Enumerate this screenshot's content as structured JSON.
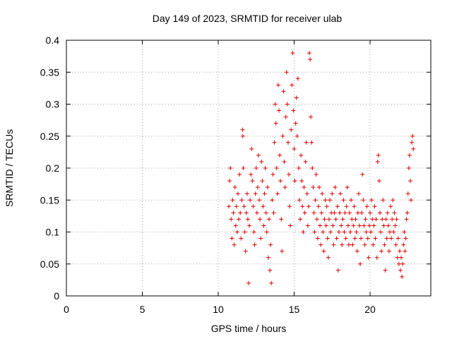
{
  "chart_data": {
    "type": "scatter",
    "title": "Day 149 of 2023, SRMTID for receiver ulab",
    "xlabel": "GPS time / hours",
    "ylabel": "SRMTID / TECUs",
    "xlim": [
      0,
      24
    ],
    "ylim": [
      0,
      0.4
    ],
    "xticks": [
      0,
      5,
      10,
      15,
      20
    ],
    "xtick_labels": [
      "0",
      "5",
      "10",
      "15",
      "20"
    ],
    "yticks": [
      0,
      0.05,
      0.1,
      0.15,
      0.2,
      0.25,
      0.3,
      0.35,
      0.4
    ],
    "ytick_labels": [
      "0",
      "0.05",
      "0.1",
      "0.15",
      "0.2",
      "0.25",
      "0.3",
      "0.35",
      "0.4"
    ],
    "grid": true,
    "marker": "+",
    "color": "#e00000",
    "series": [
      {
        "name": "SRMTID",
        "points": [
          [
            10.7,
            0.14
          ],
          [
            10.75,
            0.18
          ],
          [
            10.8,
            0.2
          ],
          [
            10.85,
            0.12
          ],
          [
            10.9,
            0.09
          ],
          [
            10.95,
            0.15
          ],
          [
            11.0,
            0.13
          ],
          [
            11.05,
            0.08
          ],
          [
            11.1,
            0.17
          ],
          [
            11.15,
            0.11
          ],
          [
            11.2,
            0.14
          ],
          [
            11.25,
            0.1
          ],
          [
            11.3,
            0.16
          ],
          [
            11.35,
            0.12
          ],
          [
            11.4,
            0.19
          ],
          [
            11.45,
            0.13
          ],
          [
            11.5,
            0.09
          ],
          [
            11.55,
            0.15
          ],
          [
            11.6,
            0.26
          ],
          [
            11.62,
            0.25
          ],
          [
            11.65,
            0.2
          ],
          [
            11.7,
            0.14
          ],
          [
            11.75,
            0.1
          ],
          [
            11.8,
            0.07
          ],
          [
            11.85,
            0.13
          ],
          [
            11.9,
            0.16
          ],
          [
            11.95,
            0.12
          ],
          [
            12.0,
            0.02
          ],
          [
            12.05,
            0.11
          ],
          [
            12.1,
            0.15
          ],
          [
            12.15,
            0.19
          ],
          [
            12.2,
            0.23
          ],
          [
            12.25,
            0.18
          ],
          [
            12.3,
            0.14
          ],
          [
            12.35,
            0.1
          ],
          [
            12.4,
            0.08
          ],
          [
            12.45,
            0.16
          ],
          [
            12.5,
            0.2
          ],
          [
            12.55,
            0.13
          ],
          [
            12.6,
            0.17
          ],
          [
            12.65,
            0.22
          ],
          [
            12.7,
            0.15
          ],
          [
            12.75,
            0.12
          ],
          [
            12.8,
            0.09
          ],
          [
            12.85,
            0.21
          ],
          [
            12.9,
            0.18
          ],
          [
            12.95,
            0.14
          ],
          [
            13.0,
            0.11
          ],
          [
            13.05,
            0.16
          ],
          [
            13.1,
            0.2
          ],
          [
            13.15,
            0.13
          ],
          [
            13.2,
            0.1
          ],
          [
            13.25,
            0.17
          ],
          [
            13.3,
            0.06
          ],
          [
            13.35,
            0.12
          ],
          [
            13.4,
            0.04
          ],
          [
            13.45,
            0.08
          ],
          [
            13.5,
            0.02
          ],
          [
            13.55,
            0.15
          ],
          [
            13.6,
            0.19
          ],
          [
            13.65,
            0.13
          ],
          [
            13.7,
            0.24
          ],
          [
            13.75,
            0.3
          ],
          [
            13.8,
            0.27
          ],
          [
            13.85,
            0.2
          ],
          [
            13.9,
            0.16
          ],
          [
            13.95,
            0.33
          ],
          [
            14.0,
            0.29
          ],
          [
            14.05,
            0.22
          ],
          [
            14.1,
            0.18
          ],
          [
            14.15,
            0.12
          ],
          [
            14.2,
            0.07
          ],
          [
            14.25,
            0.25
          ],
          [
            14.3,
            0.32
          ],
          [
            14.35,
            0.21
          ],
          [
            14.4,
            0.17
          ],
          [
            14.45,
            0.28
          ],
          [
            14.5,
            0.35
          ],
          [
            14.55,
            0.3
          ],
          [
            14.6,
            0.24
          ],
          [
            14.65,
            0.19
          ],
          [
            14.7,
            0.14
          ],
          [
            14.75,
            0.11
          ],
          [
            14.8,
            0.26
          ],
          [
            14.85,
            0.33
          ],
          [
            14.9,
            0.38
          ],
          [
            14.95,
            0.29
          ],
          [
            15.0,
            0.23
          ],
          [
            15.05,
            0.18
          ],
          [
            15.1,
            0.27
          ],
          [
            15.15,
            0.31
          ],
          [
            15.2,
            0.25
          ],
          [
            15.25,
            0.34
          ],
          [
            15.3,
            0.2
          ],
          [
            15.35,
            0.15
          ],
          [
            15.4,
            0.12
          ],
          [
            15.45,
            0.22
          ],
          [
            15.5,
            0.18
          ],
          [
            15.55,
            0.14
          ],
          [
            15.6,
            0.1
          ],
          [
            15.65,
            0.17
          ],
          [
            15.7,
            0.13
          ],
          [
            15.75,
            0.21
          ],
          [
            15.8,
            0.24
          ],
          [
            15.85,
            0.16
          ],
          [
            15.9,
            0.11
          ],
          [
            15.95,
            0.14
          ],
          [
            16.0,
            0.38
          ],
          [
            16.05,
            0.37
          ],
          [
            16.1,
            0.28
          ],
          [
            16.15,
            0.24
          ],
          [
            16.2,
            0.2
          ],
          [
            16.25,
            0.17
          ],
          [
            16.3,
            0.13
          ],
          [
            16.35,
            0.1
          ],
          [
            16.4,
            0.15
          ],
          [
            16.45,
            0.19
          ],
          [
            16.5,
            0.12
          ],
          [
            16.55,
            0.09
          ],
          [
            16.6,
            0.14
          ],
          [
            16.65,
            0.17
          ],
          [
            16.7,
            0.11
          ],
          [
            16.75,
            0.08
          ],
          [
            16.8,
            0.13
          ],
          [
            16.85,
            0.16
          ],
          [
            16.9,
            0.1
          ],
          [
            16.95,
            0.07
          ],
          [
            17.0,
            0.12
          ],
          [
            17.05,
            0.15
          ],
          [
            17.1,
            0.11
          ],
          [
            17.15,
            0.14
          ],
          [
            17.2,
            0.09
          ],
          [
            17.25,
            0.06
          ],
          [
            17.3,
            0.12
          ],
          [
            17.35,
            0.15
          ],
          [
            17.4,
            0.1
          ],
          [
            17.45,
            0.13
          ],
          [
            17.5,
            0.16
          ],
          [
            17.55,
            0.11
          ],
          [
            17.6,
            0.08
          ],
          [
            17.65,
            0.13
          ],
          [
            17.7,
            0.17
          ],
          [
            17.75,
            0.12
          ],
          [
            17.8,
            0.09
          ],
          [
            17.85,
            0.14
          ],
          [
            17.9,
            0.04
          ],
          [
            17.95,
            0.1
          ],
          [
            18.0,
            0.13
          ],
          [
            18.05,
            0.16
          ],
          [
            18.1,
            0.11
          ],
          [
            18.15,
            0.08
          ],
          [
            18.2,
            0.12
          ],
          [
            18.25,
            0.15
          ],
          [
            18.3,
            0.1
          ],
          [
            18.35,
            0.13
          ],
          [
            18.4,
            0.09
          ],
          [
            18.45,
            0.14
          ],
          [
            18.5,
            0.17
          ],
          [
            18.55,
            0.11
          ],
          [
            18.6,
            0.08
          ],
          [
            18.65,
            0.13
          ],
          [
            18.7,
            0.1
          ],
          [
            18.75,
            0.15
          ],
          [
            18.8,
            0.12
          ],
          [
            18.85,
            0.08
          ],
          [
            18.9,
            0.11
          ],
          [
            18.95,
            0.14
          ],
          [
            19.0,
            0.09
          ],
          [
            19.05,
            0.12
          ],
          [
            19.1,
            0.1
          ],
          [
            19.15,
            0.07
          ],
          [
            19.2,
            0.13
          ],
          [
            19.25,
            0.16
          ],
          [
            19.3,
            0.11
          ],
          [
            19.35,
            0.05
          ],
          [
            19.4,
            0.09
          ],
          [
            19.45,
            0.13
          ],
          [
            19.5,
            0.19
          ],
          [
            19.55,
            0.15
          ],
          [
            19.6,
            0.11
          ],
          [
            19.65,
            0.08
          ],
          [
            19.7,
            0.12
          ],
          [
            19.75,
            0.1
          ],
          [
            19.8,
            0.14
          ],
          [
            19.85,
            0.09
          ],
          [
            19.9,
            0.06
          ],
          [
            19.95,
            0.11
          ],
          [
            20.0,
            0.13
          ],
          [
            20.05,
            0.1
          ],
          [
            20.1,
            0.15
          ],
          [
            20.15,
            0.12
          ],
          [
            20.2,
            0.08
          ],
          [
            20.25,
            0.11
          ],
          [
            20.3,
            0.14
          ],
          [
            20.35,
            0.09
          ],
          [
            20.4,
            0.12
          ],
          [
            20.45,
            0.06
          ],
          [
            20.5,
            0.21
          ],
          [
            20.55,
            0.22
          ],
          [
            20.6,
            0.18
          ],
          [
            20.65,
            0.13
          ],
          [
            20.7,
            0.1
          ],
          [
            20.75,
            0.07
          ],
          [
            20.8,
            0.12
          ],
          [
            20.85,
            0.15
          ],
          [
            20.9,
            0.11
          ],
          [
            20.95,
            0.08
          ],
          [
            21.0,
            0.04
          ],
          [
            21.05,
            0.12
          ],
          [
            21.1,
            0.09
          ],
          [
            21.15,
            0.13
          ],
          [
            21.2,
            0.11
          ],
          [
            21.25,
            0.07
          ],
          [
            21.3,
            0.1
          ],
          [
            21.35,
            0.14
          ],
          [
            21.4,
            0.09
          ],
          [
            21.45,
            0.12
          ],
          [
            21.5,
            0.15
          ],
          [
            21.55,
            0.1
          ],
          [
            21.6,
            0.13
          ],
          [
            21.65,
            0.11
          ],
          [
            21.7,
            0.08
          ],
          [
            21.75,
            0.12
          ],
          [
            21.8,
            0.06
          ],
          [
            21.85,
            0.09
          ],
          [
            21.9,
            0.05
          ],
          [
            21.95,
            0.07
          ],
          [
            22.0,
            0.04
          ],
          [
            22.05,
            0.06
          ],
          [
            22.1,
            0.03
          ],
          [
            22.15,
            0.05
          ],
          [
            22.2,
            0.08
          ],
          [
            22.25,
            0.1
          ],
          [
            22.3,
            0.07
          ],
          [
            22.35,
            0.09
          ],
          [
            22.4,
            0.12
          ],
          [
            22.45,
            0.13
          ],
          [
            22.5,
            0.16
          ],
          [
            22.55,
            0.2
          ],
          [
            22.6,
            0.22
          ],
          [
            22.65,
            0.18
          ],
          [
            22.7,
            0.15
          ],
          [
            22.75,
            0.24
          ],
          [
            22.8,
            0.25
          ],
          [
            22.85,
            0.23
          ]
        ]
      }
    ]
  }
}
